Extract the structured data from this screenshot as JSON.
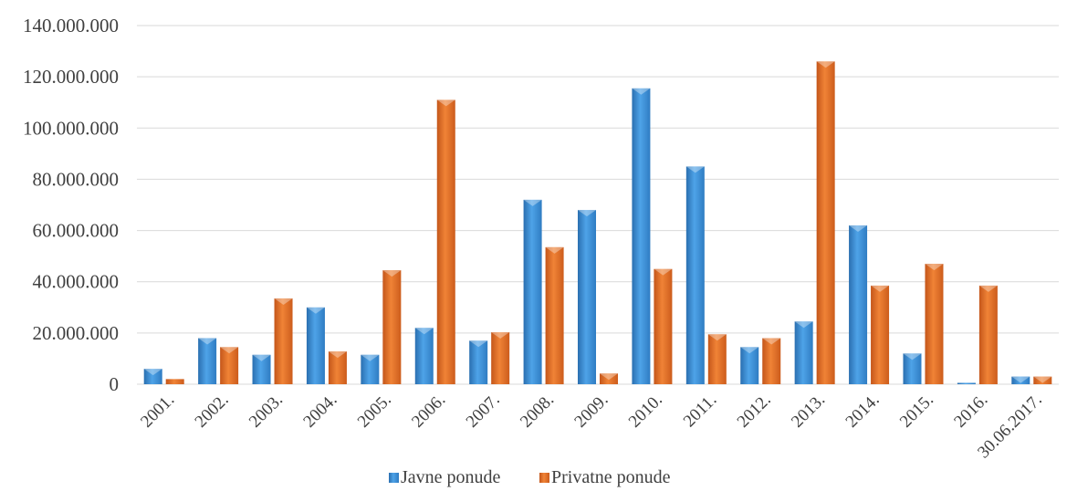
{
  "chart_data": {
    "type": "bar",
    "categories": [
      "2001.",
      "2002.",
      "2003.",
      "2004.",
      "2005.",
      "2006.",
      "2007.",
      "2008.",
      "2009.",
      "2010.",
      "2011.",
      "2012.",
      "2013.",
      "2014.",
      "2015.",
      "2016.",
      "30.06.2017."
    ],
    "series": [
      {
        "name": "Javne ponude",
        "color": "#3c8fd6",
        "values": [
          6000000,
          18000000,
          11500000,
          30000000,
          11500000,
          22000000,
          17000000,
          72000000,
          68000000,
          115500000,
          85000000,
          14500000,
          24500000,
          62000000,
          12000000,
          500000,
          3000000
        ]
      },
      {
        "name": "Privatne ponude",
        "color": "#e56e1f",
        "values": [
          2000000,
          14500000,
          33500000,
          12800000,
          44500000,
          111000000,
          20300000,
          53500000,
          4200000,
          45000000,
          19500000,
          18000000,
          126000000,
          38500000,
          47000000,
          38500000,
          3000000
        ]
      }
    ],
    "yticks": [
      "0",
      "20.000.000",
      "40.000.000",
      "60.000.000",
      "80.000.000",
      "100.000.000",
      "120.000.000",
      "140.000.000"
    ],
    "ylim": [
      0,
      140000000
    ],
    "ytick_step": 20000000,
    "grid": true,
    "legend_position": "bottom"
  }
}
